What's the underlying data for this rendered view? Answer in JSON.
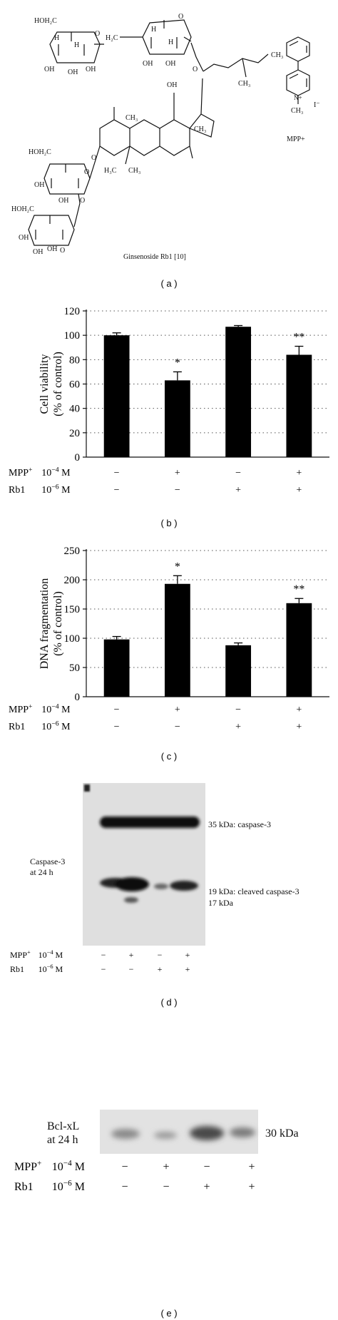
{
  "figure": {
    "panel_labels": [
      "( a )",
      "( b )",
      "( c )",
      "( d )",
      "( e )"
    ]
  },
  "structure": {
    "caption": "Ginsenoside Rb1 [10]",
    "mpp_label": "MPP+",
    "atoms": {
      "hoh2c": "HOH₂C",
      "h2c": "H₂C",
      "oh": "OH",
      "h": "H",
      "o": "O",
      "ch3": "CH₃",
      "h3c": "H₃C",
      "iodide": "I⁻",
      "n_plus": "N+"
    }
  },
  "chart_data": [
    {
      "type": "bar",
      "panel": "b",
      "categories": [
        "1",
        "2",
        "3",
        "4"
      ],
      "values": [
        100,
        63,
        107,
        84
      ],
      "errors": [
        2,
        7,
        1,
        7
      ],
      "significance": [
        "",
        "*",
        "",
        "**"
      ],
      "ylabel": "Cell viability\n(% of control)",
      "ylim": [
        0,
        120
      ],
      "yticks": [
        0,
        20,
        40,
        60,
        80,
        100,
        120
      ],
      "grid": "horizontal-dotted",
      "treatments": [
        {
          "name": "MPP+",
          "dose": "10−4 M",
          "signs": [
            "−",
            "+",
            "−",
            "+"
          ]
        },
        {
          "name": "Rb1",
          "dose": "10−6 M",
          "signs": [
            "−",
            "−",
            "+",
            "+"
          ]
        }
      ]
    },
    {
      "type": "bar",
      "panel": "c",
      "categories": [
        "1",
        "2",
        "3",
        "4"
      ],
      "values": [
        98,
        193,
        88,
        160
      ],
      "errors": [
        5,
        14,
        4,
        8
      ],
      "significance": [
        "",
        "*",
        "",
        "**"
      ],
      "ylabel": "DNA fragmentation\n(% of control)",
      "ylim": [
        0,
        250
      ],
      "yticks": [
        0,
        50,
        100,
        150,
        200,
        250
      ],
      "grid": "horizontal-dotted",
      "treatments": [
        {
          "name": "MPP+",
          "dose": "10−4 M",
          "signs": [
            "−",
            "+",
            "−",
            "+"
          ]
        },
        {
          "name": "Rb1",
          "dose": "10−6 M",
          "signs": [
            "−",
            "−",
            "+",
            "+"
          ]
        }
      ]
    }
  ],
  "blot_d": {
    "left_label": [
      "Caspase-3",
      "at 24 h"
    ],
    "band_labels": [
      "35 kDa: caspase-3",
      "19 kDa: cleaved caspase-3",
      "17 kDa"
    ],
    "treatments": [
      {
        "name": "MPP+",
        "dose": "10−4 M",
        "signs": [
          "−",
          "+",
          "−",
          "+"
        ]
      },
      {
        "name": "Rb1",
        "dose": "10−6 M",
        "signs": [
          "−",
          "−",
          "+",
          "+"
        ]
      }
    ]
  },
  "blot_e": {
    "left_label": [
      "Bcl-xL",
      "at 24 h"
    ],
    "band_label": "30 kDa",
    "treatments": [
      {
        "name": "MPP+",
        "dose": "10−4 M",
        "signs": [
          "−",
          "+",
          "−",
          "+"
        ]
      },
      {
        "name": "Rb1",
        "dose": "10−6 M",
        "signs": [
          "−",
          "−",
          "+",
          "+"
        ]
      }
    ]
  }
}
